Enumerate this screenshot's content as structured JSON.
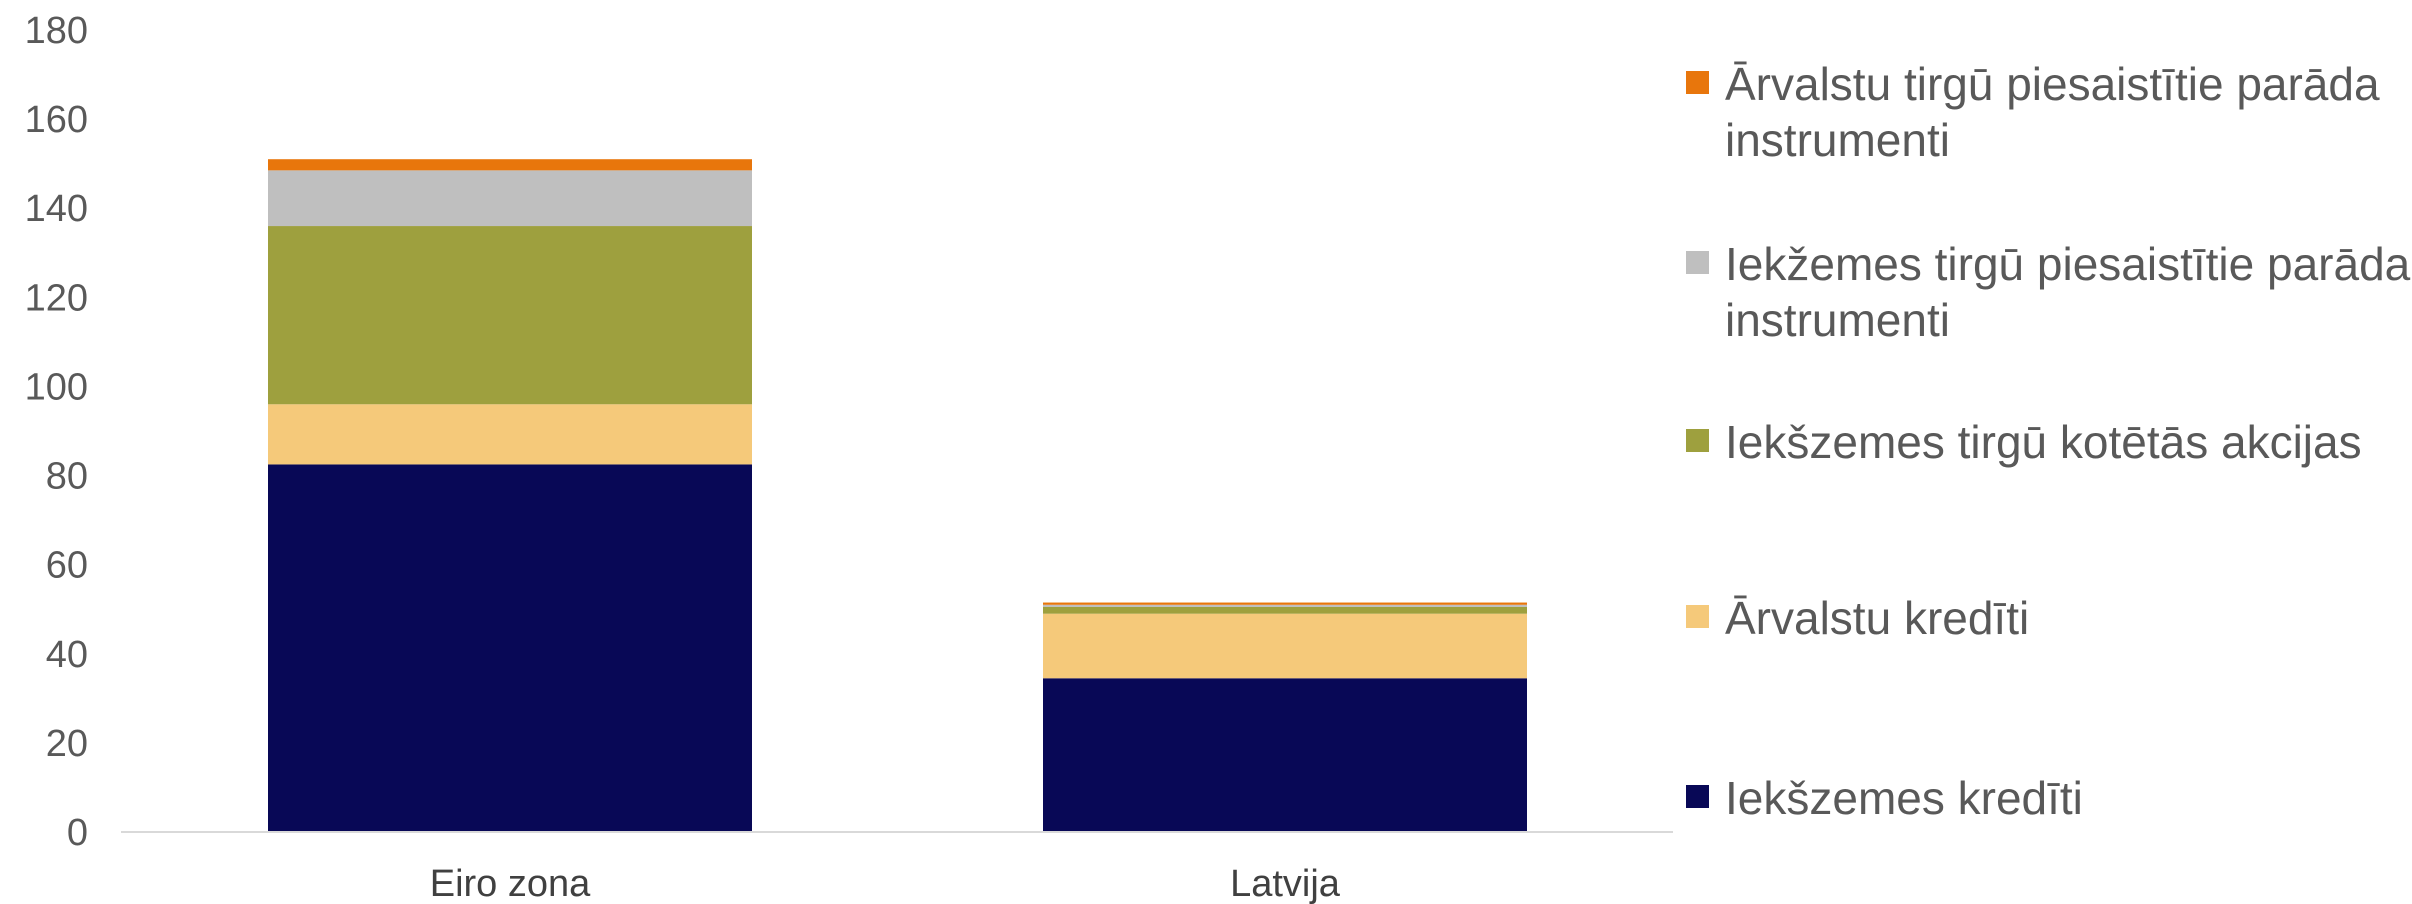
{
  "chart_data": {
    "type": "bar",
    "stacked": true,
    "categories": [
      "Eiro zona",
      "Latvija"
    ],
    "series": [
      {
        "name": "Iekšzemes kredīti",
        "color": "#080856",
        "values": [
          82.5,
          34.5
        ]
      },
      {
        "name": "Ārvalstu kredīti",
        "color": "#f5c97a",
        "values": [
          13.5,
          14.5
        ]
      },
      {
        "name": "Iekšzemes tirgū kotētās akcijas",
        "color": "#9ea03e",
        "values": [
          40.0,
          1.5
        ]
      },
      {
        "name": "Iekžemes tirgū piesaistītie parāda instrumenti",
        "color": "#bfbfbf",
        "values": [
          12.5,
          0.5
        ]
      },
      {
        "name": "Ārvalstu tirgū piesaistītie parāda instrumenti",
        "color": "#e8760c",
        "values": [
          2.5,
          0.5
        ]
      }
    ],
    "yticks": [
      "0",
      "20",
      "40",
      "60",
      "80",
      "100",
      "120",
      "140",
      "160",
      "180"
    ],
    "ylim": [
      0,
      180
    ],
    "grid": false,
    "legend_position": "right",
    "title": "",
    "xlabel": "",
    "ylabel": ""
  }
}
